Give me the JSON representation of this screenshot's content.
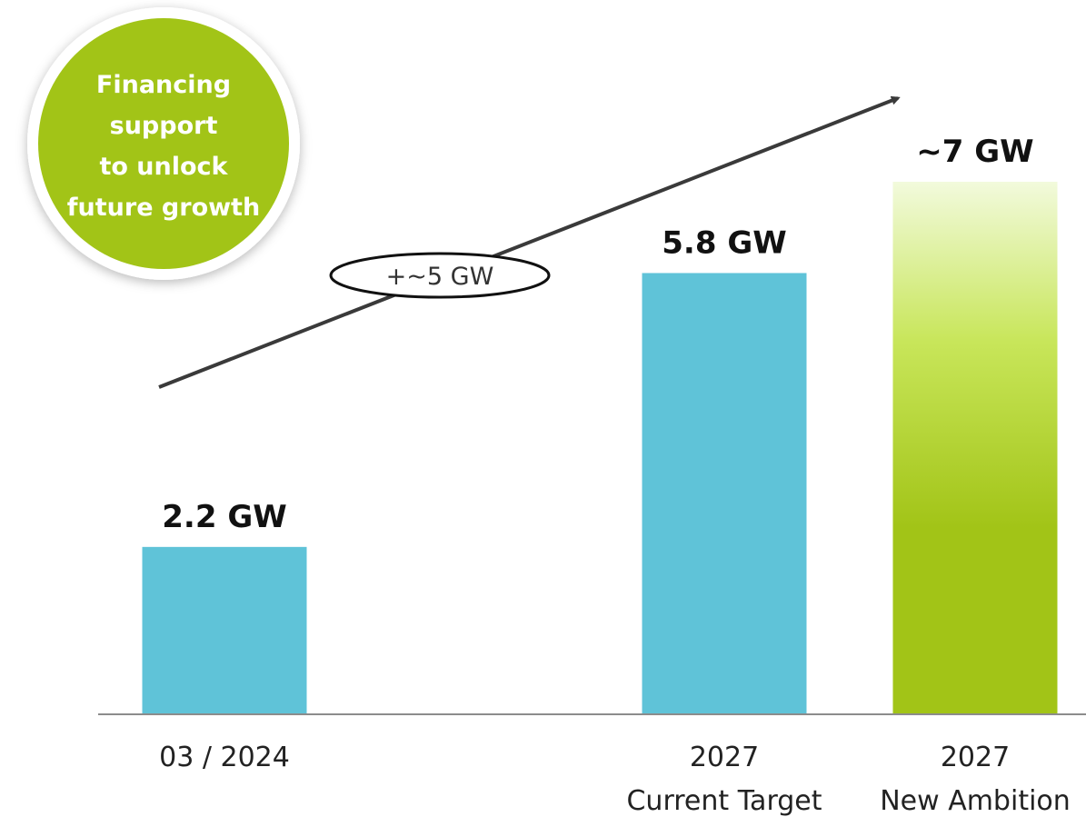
{
  "chart_data": {
    "type": "bar",
    "categories": [
      [
        "03 / 2024"
      ],
      [
        "2027",
        "Current Target"
      ],
      [
        "2027",
        "New Ambition"
      ]
    ],
    "values": [
      2.2,
      5.8,
      7
    ],
    "value_labels": [
      "2.2 GW",
      "5.8 GW",
      "~7 GW"
    ],
    "unit": "GW",
    "ylim": [
      0,
      7.3
    ],
    "grid": false,
    "bar_styles": [
      "solid",
      "solid",
      "gradient"
    ],
    "colors": {
      "current": "#5fc3d8",
      "ambition_top": "#f2fadc",
      "ambition_mid": "#c8e65a",
      "ambition_bottom": "#a2c417",
      "axis": "#8c8c8c",
      "arrow": "#3a3a3a",
      "callout": "#a2c417"
    },
    "annotations": {
      "growth_label": "+~5 GW",
      "callout_lines": [
        "Financing",
        "support",
        "to unlock",
        "future growth"
      ]
    }
  }
}
